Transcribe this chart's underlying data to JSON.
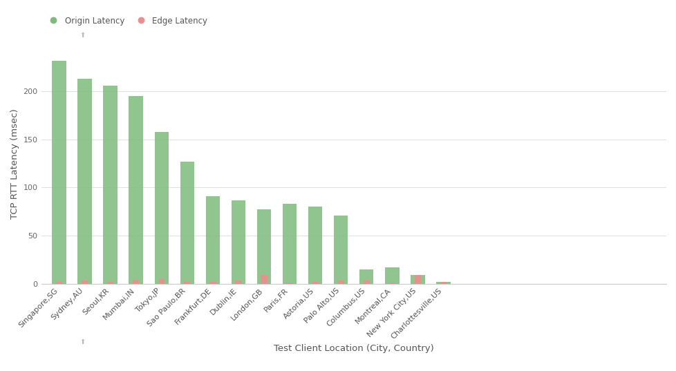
{
  "categories": [
    "Singapore,SG",
    "Sydney,AU",
    "Seoul,KR",
    "Mumbai,IN",
    "Tokyo,JP",
    "Sao Paulo,BR",
    "Frankfurt,DE",
    "Dublin,IE",
    "London,GB",
    "Paris,FR",
    "Astoria,US",
    "Palo Alto,US",
    "Columbus,US",
    "Montreal,CA",
    "New York City,US",
    "Charlottesville,US"
  ],
  "origin_latency": [
    232,
    213,
    206,
    195,
    158,
    127,
    91,
    87,
    77,
    83,
    80,
    71,
    15,
    17,
    9,
    2
  ],
  "edge_latency": [
    2,
    3,
    2,
    4,
    5,
    2,
    2,
    3,
    9,
    1,
    2,
    3,
    3,
    1,
    9,
    2
  ],
  "origin_color": "#7dbb7d",
  "edge_color": "#e8908e",
  "background_color": "#ffffff",
  "ylabel": "TCP RTT Latency (msec)",
  "xlabel": "Test Client Location (City, Country)",
  "legend_origin": "Origin Latency",
  "legend_edge": "Edge Latency",
  "ylim": [
    0,
    250
  ],
  "yticks": [
    0,
    50,
    100,
    150,
    200
  ],
  "origin_bar_width": 0.55,
  "edge_bar_width": 0.25,
  "label_fontsize": 9.5,
  "tick_fontsize": 8,
  "legend_fontsize": 8.5
}
